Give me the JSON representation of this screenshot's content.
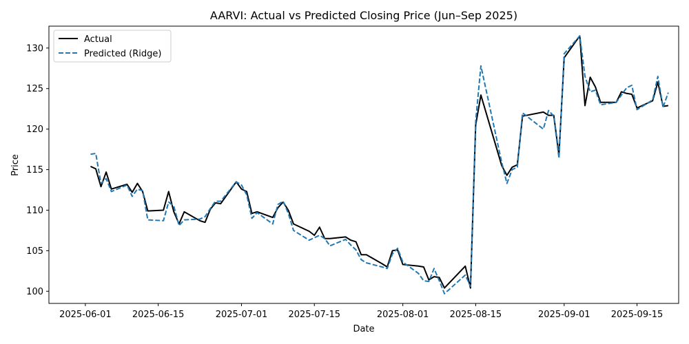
{
  "chart_data": {
    "type": "line",
    "title": "AARVI: Actual vs Predicted Closing Price (Jun–Sep 2025)",
    "xlabel": "Date",
    "ylabel": "Price",
    "x_ticks": [
      "2025-06-01",
      "2025-06-15",
      "2025-07-01",
      "2025-07-15",
      "2025-08-01",
      "2025-08-15",
      "2025-09-01",
      "2025-09-15"
    ],
    "y_ticks": [
      100,
      105,
      110,
      115,
      120,
      125,
      130
    ],
    "xlim": [
      "2025-05-25",
      "2025-09-23"
    ],
    "ylim": [
      98.5,
      132.7
    ],
    "grid": false,
    "legend_position": "top-left",
    "series": [
      {
        "name": "Actual",
        "color": "#000000",
        "style": "solid",
        "points": [
          [
            "2025-06-02",
            115.4
          ],
          [
            "2025-06-03",
            115.1
          ],
          [
            "2025-06-04",
            112.9
          ],
          [
            "2025-06-05",
            114.7
          ],
          [
            "2025-06-06",
            112.6
          ],
          [
            "2025-06-09",
            113.2
          ],
          [
            "2025-06-10",
            112.2
          ],
          [
            "2025-06-11",
            113.3
          ],
          [
            "2025-06-12",
            112.3
          ],
          [
            "2025-06-13",
            109.9
          ],
          [
            "2025-06-16",
            110.0
          ],
          [
            "2025-06-17",
            112.3
          ],
          [
            "2025-06-18",
            109.8
          ],
          [
            "2025-06-19",
            108.3
          ],
          [
            "2025-06-20",
            109.8
          ],
          [
            "2025-06-23",
            108.7
          ],
          [
            "2025-06-24",
            108.5
          ],
          [
            "2025-06-25",
            110.1
          ],
          [
            "2025-06-26",
            110.9
          ],
          [
            "2025-06-27",
            110.8
          ],
          [
            "2025-06-30",
            113.5
          ],
          [
            "2025-07-01",
            112.6
          ],
          [
            "2025-07-02",
            112.3
          ],
          [
            "2025-07-03",
            109.6
          ],
          [
            "2025-07-04",
            109.8
          ],
          [
            "2025-07-07",
            109.1
          ],
          [
            "2025-07-08",
            110.3
          ],
          [
            "2025-07-09",
            111.0
          ],
          [
            "2025-07-10",
            110.0
          ],
          [
            "2025-07-11",
            108.3
          ],
          [
            "2025-07-14",
            107.4
          ],
          [
            "2025-07-15",
            106.9
          ],
          [
            "2025-07-16",
            107.9
          ],
          [
            "2025-07-17",
            106.5
          ],
          [
            "2025-07-18",
            106.5
          ],
          [
            "2025-07-21",
            106.7
          ],
          [
            "2025-07-22",
            106.3
          ],
          [
            "2025-07-23",
            106.1
          ],
          [
            "2025-07-24",
            104.5
          ],
          [
            "2025-07-25",
            104.5
          ],
          [
            "2025-07-28",
            103.4
          ],
          [
            "2025-07-29",
            103.0
          ],
          [
            "2025-07-30",
            105.0
          ],
          [
            "2025-07-31",
            105.1
          ],
          [
            "2025-08-01",
            103.3
          ],
          [
            "2025-08-04",
            103.1
          ],
          [
            "2025-08-05",
            103.0
          ],
          [
            "2025-08-06",
            101.4
          ],
          [
            "2025-08-07",
            101.8
          ],
          [
            "2025-08-08",
            101.7
          ],
          [
            "2025-08-09",
            100.4
          ],
          [
            "2025-08-13",
            103.1
          ],
          [
            "2025-08-14",
            100.4
          ],
          [
            "2025-08-15",
            120.5
          ],
          [
            "2025-08-16",
            124.2
          ],
          [
            "2025-08-20",
            115.5
          ],
          [
            "2025-08-21",
            114.3
          ],
          [
            "2025-08-22",
            115.3
          ],
          [
            "2025-08-23",
            115.6
          ],
          [
            "2025-08-24",
            121.6
          ],
          [
            "2025-08-28",
            122.1
          ],
          [
            "2025-08-29",
            121.7
          ],
          [
            "2025-08-30",
            121.7
          ],
          [
            "2025-08-31",
            116.8
          ],
          [
            "2025-09-01",
            128.8
          ],
          [
            "2025-09-04",
            131.5
          ],
          [
            "2025-09-05",
            122.9
          ],
          [
            "2025-09-06",
            126.4
          ],
          [
            "2025-09-07",
            125.2
          ],
          [
            "2025-09-08",
            123.3
          ],
          [
            "2025-09-11",
            123.3
          ],
          [
            "2025-09-12",
            124.6
          ],
          [
            "2025-09-13",
            124.4
          ],
          [
            "2025-09-14",
            124.3
          ],
          [
            "2025-09-15",
            122.6
          ],
          [
            "2025-09-18",
            123.5
          ],
          [
            "2025-09-19",
            125.8
          ],
          [
            "2025-09-20",
            122.8
          ],
          [
            "2025-09-21",
            122.9
          ]
        ]
      },
      {
        "name": "Predicted (Ridge)",
        "color": "#1f77b4",
        "style": "dashed",
        "points": [
          [
            "2025-06-02",
            116.9
          ],
          [
            "2025-06-03",
            117.0
          ],
          [
            "2025-06-04",
            113.3
          ],
          [
            "2025-06-05",
            113.9
          ],
          [
            "2025-06-06",
            112.3
          ],
          [
            "2025-06-09",
            113.1
          ],
          [
            "2025-06-10",
            111.7
          ],
          [
            "2025-06-11",
            112.6
          ],
          [
            "2025-06-12",
            112.4
          ],
          [
            "2025-06-13",
            108.8
          ],
          [
            "2025-06-16",
            108.7
          ],
          [
            "2025-06-17",
            111.0
          ],
          [
            "2025-06-18",
            110.5
          ],
          [
            "2025-06-19",
            108.1
          ],
          [
            "2025-06-20",
            108.8
          ],
          [
            "2025-06-23",
            108.9
          ],
          [
            "2025-06-24",
            109.2
          ],
          [
            "2025-06-25",
            110.2
          ],
          [
            "2025-06-26",
            111.1
          ],
          [
            "2025-06-27",
            111.1
          ],
          [
            "2025-06-30",
            113.5
          ],
          [
            "2025-07-01",
            113.1
          ],
          [
            "2025-07-02",
            111.9
          ],
          [
            "2025-07-03",
            109.0
          ],
          [
            "2025-07-04",
            109.7
          ],
          [
            "2025-07-07",
            108.3
          ],
          [
            "2025-07-08",
            110.7
          ],
          [
            "2025-07-09",
            111.1
          ],
          [
            "2025-07-10",
            109.6
          ],
          [
            "2025-07-11",
            107.5
          ],
          [
            "2025-07-14",
            106.3
          ],
          [
            "2025-07-15",
            106.6
          ],
          [
            "2025-07-16",
            106.9
          ],
          [
            "2025-07-17",
            106.5
          ],
          [
            "2025-07-18",
            105.6
          ],
          [
            "2025-07-21",
            106.4
          ],
          [
            "2025-07-22",
            105.7
          ],
          [
            "2025-07-23",
            105.1
          ],
          [
            "2025-07-24",
            103.9
          ],
          [
            "2025-07-25",
            103.5
          ],
          [
            "2025-07-28",
            103.0
          ],
          [
            "2025-07-29",
            102.8
          ],
          [
            "2025-07-30",
            104.6
          ],
          [
            "2025-07-31",
            105.3
          ],
          [
            "2025-08-01",
            103.6
          ],
          [
            "2025-08-04",
            102.2
          ],
          [
            "2025-08-05",
            101.3
          ],
          [
            "2025-08-06",
            101.2
          ],
          [
            "2025-08-07",
            102.8
          ],
          [
            "2025-08-08",
            101.3
          ],
          [
            "2025-08-09",
            99.7
          ],
          [
            "2025-08-13",
            102.0
          ],
          [
            "2025-08-14",
            100.6
          ],
          [
            "2025-08-15",
            121.0
          ],
          [
            "2025-08-16",
            127.8
          ],
          [
            "2025-08-20",
            115.9
          ],
          [
            "2025-08-21",
            113.3
          ],
          [
            "2025-08-22",
            115.0
          ],
          [
            "2025-08-23",
            115.3
          ],
          [
            "2025-08-24",
            122.0
          ],
          [
            "2025-08-28",
            120.0
          ],
          [
            "2025-08-29",
            122.3
          ],
          [
            "2025-08-30",
            121.6
          ],
          [
            "2025-08-31",
            116.4
          ],
          [
            "2025-09-01",
            129.3
          ],
          [
            "2025-09-04",
            131.5
          ],
          [
            "2025-09-05",
            126.5
          ],
          [
            "2025-09-06",
            124.6
          ],
          [
            "2025-09-07",
            124.8
          ],
          [
            "2025-09-08",
            123.0
          ],
          [
            "2025-09-11",
            123.3
          ],
          [
            "2025-09-12",
            124.2
          ],
          [
            "2025-09-13",
            125.1
          ],
          [
            "2025-09-14",
            125.4
          ],
          [
            "2025-09-15",
            122.4
          ],
          [
            "2025-09-18",
            123.6
          ],
          [
            "2025-09-19",
            126.5
          ],
          [
            "2025-09-20",
            122.7
          ],
          [
            "2025-09-21",
            124.5
          ]
        ]
      }
    ]
  }
}
